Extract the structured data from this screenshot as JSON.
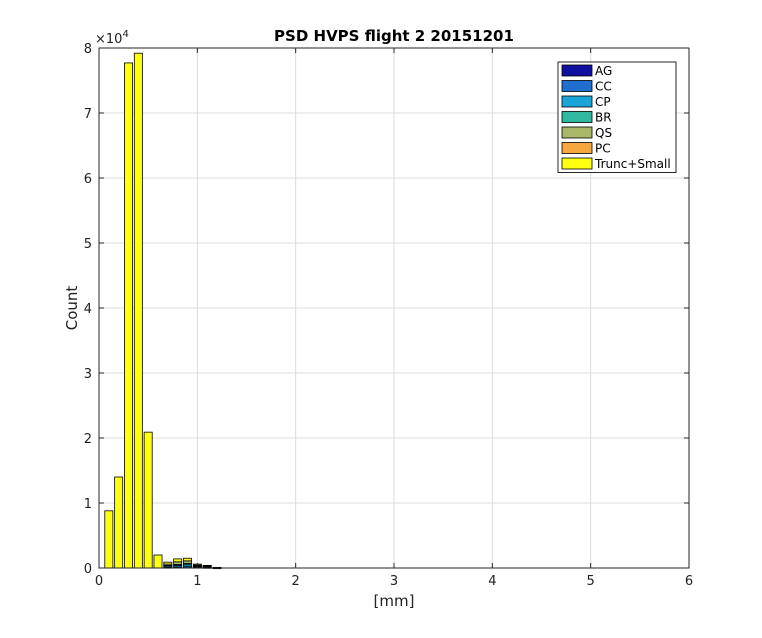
{
  "chart_data": {
    "type": "bar",
    "title": "PSD HVPS  flight 2 20151201",
    "xlabel": "[mm]",
    "ylabel": "Count",
    "xlim": [
      0,
      6
    ],
    "ylim": [
      0,
      80000
    ],
    "x_ticks": [
      0,
      1,
      2,
      3,
      4,
      5,
      6
    ],
    "y_ticks": [
      0,
      1,
      2,
      3,
      4,
      5,
      6,
      7,
      8
    ],
    "y_exponent": {
      "base": "×10",
      "power": "4"
    },
    "stacked": true,
    "grid": true,
    "legend_position": "top-right",
    "x": [
      0.1,
      0.2,
      0.3,
      0.4,
      0.5,
      0.6,
      0.7,
      0.8,
      0.9,
      1.0,
      1.1,
      1.2
    ],
    "series": [
      {
        "name": "AG",
        "color": "#1010a0",
        "values": [
          0,
          0,
          0,
          0,
          0,
          0,
          0,
          0,
          0,
          0,
          0,
          0
        ]
      },
      {
        "name": "CC",
        "color": "#1f6fd0",
        "values": [
          0,
          0,
          0,
          0,
          0,
          0,
          100,
          150,
          200,
          100,
          80,
          20
        ]
      },
      {
        "name": "CP",
        "color": "#1aa5d8",
        "values": [
          0,
          0,
          0,
          0,
          0,
          0,
          200,
          250,
          300,
          150,
          100,
          30
        ]
      },
      {
        "name": "BR",
        "color": "#30b8a0",
        "values": [
          0,
          0,
          0,
          0,
          0,
          0,
          100,
          150,
          200,
          100,
          80,
          20
        ]
      },
      {
        "name": "QS",
        "color": "#a8b868",
        "values": [
          0,
          0,
          0,
          0,
          0,
          0,
          200,
          400,
          400,
          100,
          80,
          20
        ]
      },
      {
        "name": "PC",
        "color": "#f5a840",
        "values": [
          0,
          0,
          0,
          0,
          0,
          0,
          0,
          0,
          0,
          0,
          0,
          0
        ]
      },
      {
        "name": "Trunc+Small",
        "color": "#ffff10",
        "values": [
          8800,
          14000,
          77700,
          79200,
          20900,
          2000,
          300,
          450,
          400,
          150,
          60,
          10
        ]
      }
    ]
  }
}
